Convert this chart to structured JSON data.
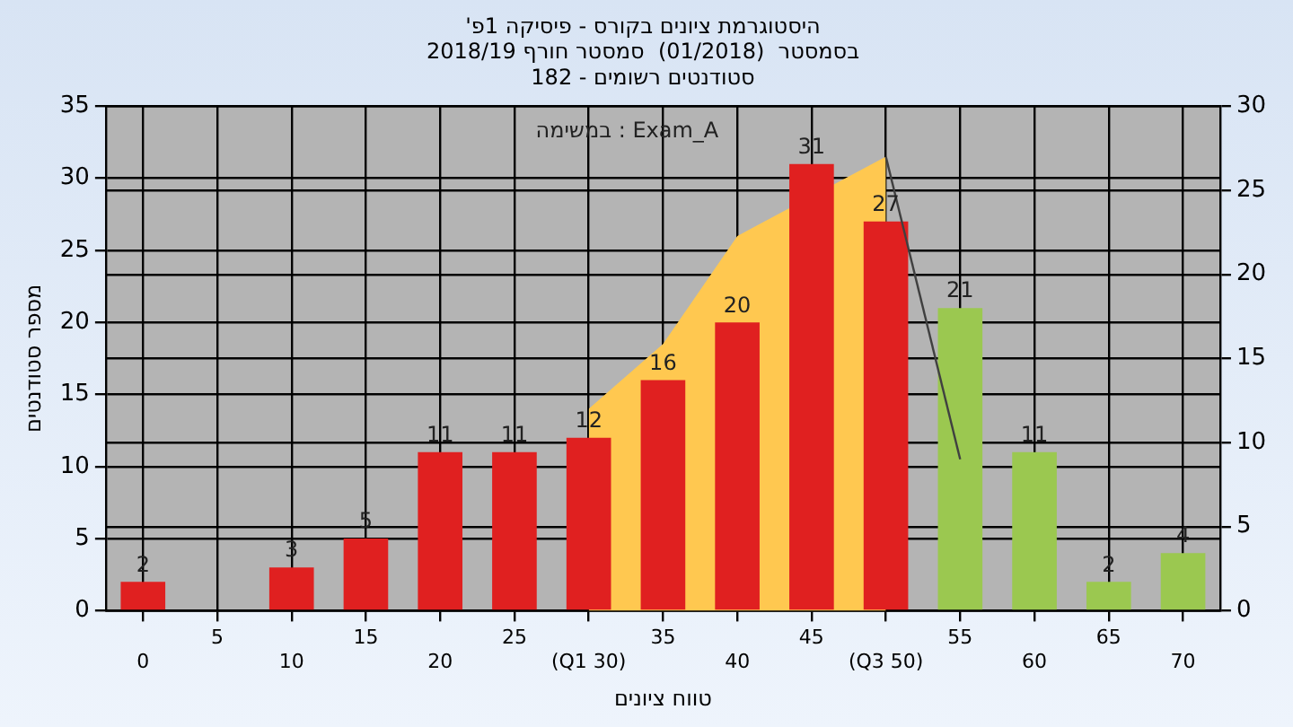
{
  "chart_data": {
    "type": "bar",
    "title": "'היסטוגרמת ציונים בקורס - פיסיקה 1פ",
    "subtitle": "בסמסטר  (01/2018)  סמסטר חורף 2018/19\nסטודנטים רשומים - 182",
    "xlabel": "טווח ציונים",
    "ylabel": "מספר סטודנטים",
    "annotations": [
      "במשימה : Exam_A"
    ],
    "categories": [
      "0",
      "5",
      "10",
      "15",
      "20",
      "25",
      "(Q1 30)",
      "35",
      "40",
      "45",
      "(Q3 50)",
      "55",
      "60",
      "65",
      "70"
    ],
    "series": [
      {
        "type": "area",
        "color": "#ffc850",
        "values": [
          null,
          null,
          null,
          null,
          null,
          null,
          14,
          18.5,
          26,
          null,
          31.5,
          null,
          null,
          null,
          null
        ]
      },
      {
        "type": "line",
        "color": "#404040",
        "values": [
          null,
          null,
          null,
          null,
          null,
          null,
          null,
          null,
          null,
          null,
          31.5,
          10.5,
          null,
          null,
          null
        ]
      },
      {
        "type": "bar",
        "colors": [
          "#e02020",
          "#e02020",
          "#e02020",
          "#e02020",
          "#e02020",
          "#e02020",
          "#e02020",
          "#e02020",
          "#e02020",
          "#e02020",
          "#e02020",
          "#9bc850",
          "#9bc850",
          "#9bc850",
          "#9bc850"
        ],
        "values": [
          2,
          null,
          3,
          5,
          11,
          11,
          12,
          16,
          20,
          31,
          27,
          21,
          11,
          2,
          4
        ],
        "value_labels": [
          "2",
          null,
          "3",
          "5",
          "11",
          "11",
          "12",
          "16",
          "20",
          "31",
          "27",
          "21",
          "11",
          "2",
          "4"
        ]
      }
    ],
    "ylim": [
      0,
      35
    ],
    "yticks": [
      0,
      5,
      10,
      15,
      20,
      25,
      30,
      35
    ],
    "y2lim": [
      0,
      30
    ],
    "y2ticks": [
      0,
      5,
      10,
      15,
      20,
      25,
      30
    ],
    "grid": true,
    "legend": false,
    "marker": "none"
  }
}
